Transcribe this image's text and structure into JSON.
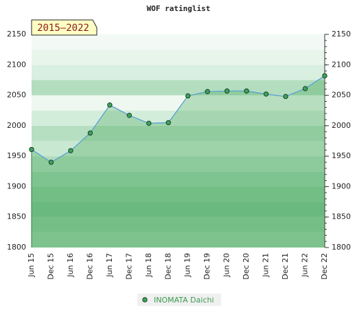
{
  "chart_data": {
    "type": "line",
    "title": "WOF ratinglist",
    "annotation": "2015–2022",
    "categories": [
      "Jun 15",
      "Dec 15",
      "Jun 16",
      "Dec 16",
      "Jun 17",
      "Dec 17",
      "Jun 18",
      "Dec 18",
      "Jun 19",
      "Dec 19",
      "Jun 20",
      "Dec 20",
      "Jun 21",
      "Dec 21",
      "Jun 22",
      "Dec 22"
    ],
    "series": [
      {
        "name": "INOMATA Daichi",
        "color": "#5a9fd4",
        "values": [
          1961,
          1940,
          1959,
          1988,
          2034,
          2017,
          2004,
          2005,
          2049,
          2056,
          2057,
          2057,
          2052,
          2048,
          2061,
          2082
        ]
      }
    ],
    "ylim": [
      1800,
      2150
    ],
    "yticks": [
      1800,
      1850,
      1900,
      1950,
      2000,
      2050,
      2100,
      2150
    ]
  }
}
